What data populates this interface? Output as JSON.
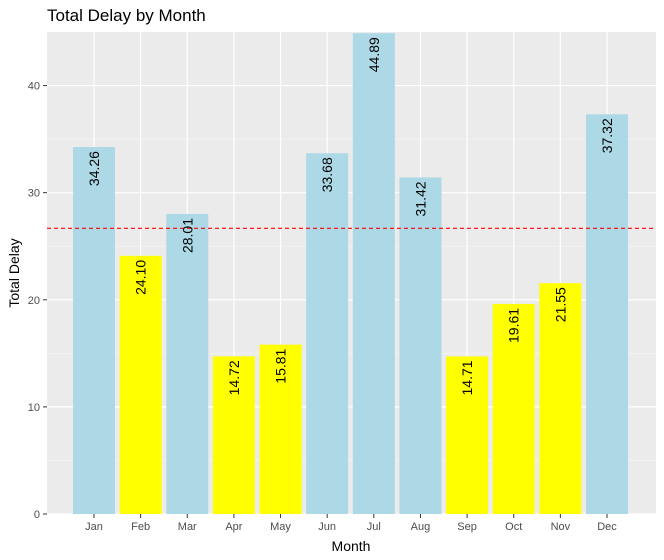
{
  "chart_data": {
    "type": "bar",
    "title": "Total Delay by Month",
    "xlabel": "Month",
    "ylabel": "Total Delay",
    "categories": [
      "Jan",
      "Feb",
      "Mar",
      "Apr",
      "May",
      "Jun",
      "Jul",
      "Aug",
      "Sep",
      "Oct",
      "Nov",
      "Dec"
    ],
    "values": [
      34.26,
      24.1,
      28.01,
      14.72,
      15.81,
      33.68,
      44.89,
      31.42,
      14.71,
      19.61,
      21.55,
      37.32
    ],
    "value_labels": [
      "34.26",
      "24.10",
      "28.01",
      "14.72",
      "15.81",
      "33.68",
      "44.89",
      "31.42",
      "14.71",
      "19.61",
      "21.55",
      "37.32"
    ],
    "ylim": [
      0,
      45
    ],
    "yticks": [
      0,
      10,
      20,
      30,
      40
    ],
    "reference_line": {
      "y": 26.67,
      "style": "dashed",
      "color": "#ff0000"
    },
    "colors": {
      "above": "#add8e6",
      "below": "#ffff00",
      "panel": "#ebebeb",
      "grid": "#ffffff"
    },
    "bar_colors": [
      "above",
      "below",
      "above",
      "below",
      "below",
      "above",
      "above",
      "above",
      "below",
      "below",
      "below",
      "above"
    ],
    "grid": true,
    "legend": "none"
  }
}
